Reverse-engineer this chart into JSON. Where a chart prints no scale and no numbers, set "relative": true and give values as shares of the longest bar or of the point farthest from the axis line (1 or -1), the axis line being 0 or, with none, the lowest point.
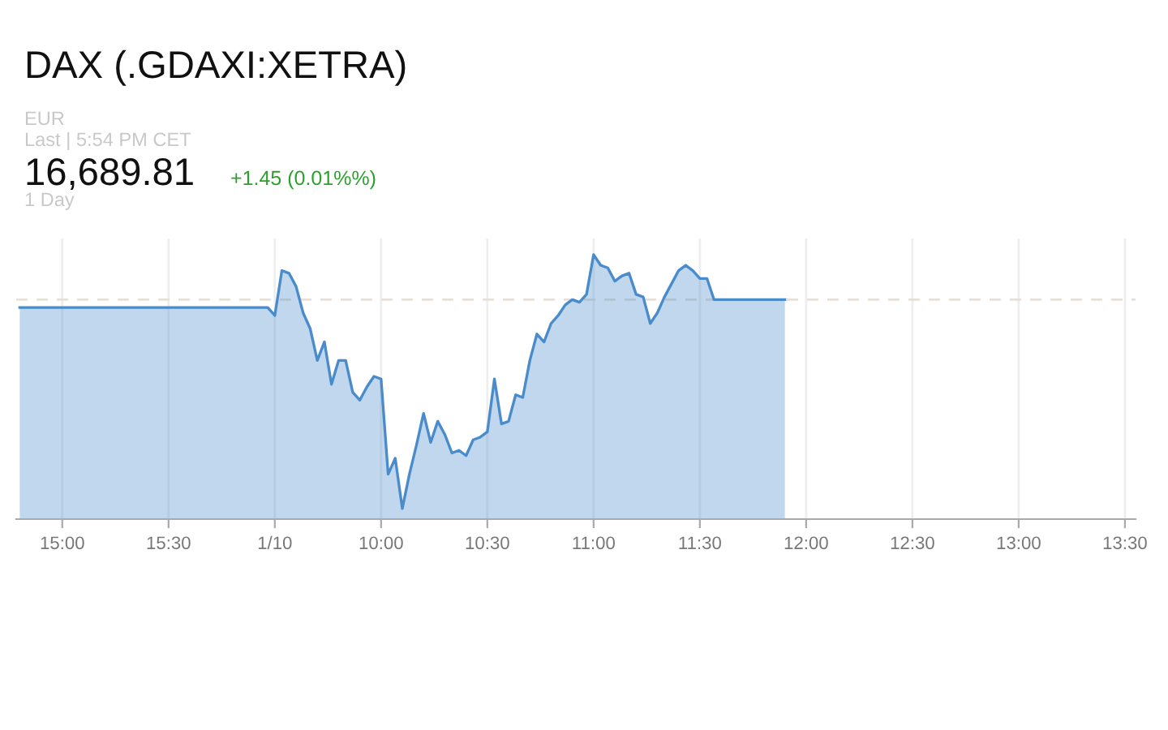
{
  "chart_data": {
    "type": "area",
    "title": "DAX (.GDAXI:XETRA)",
    "subtitle": "EUR",
    "annotations": [
      "Last | 5:54 PM CET",
      "16,689.81",
      "+1.45 (0.01%%)",
      "1 Day"
    ],
    "relative": true,
    "categories": [
      null,
      null,
      null,
      null,
      null,
      null,
      "15:00",
      null,
      null,
      null,
      null,
      null,
      null,
      null,
      null,
      null,
      null,
      null,
      null,
      null,
      null,
      "15:30",
      null,
      null,
      null,
      null,
      null,
      null,
      null,
      null,
      null,
      null,
      null,
      null,
      null,
      null,
      "1/10",
      null,
      null,
      null,
      null,
      null,
      null,
      null,
      null,
      null,
      null,
      null,
      null,
      null,
      null,
      "10:00",
      null,
      null,
      null,
      null,
      null,
      null,
      null,
      null,
      null,
      null,
      null,
      null,
      null,
      null,
      "10:30",
      null,
      null,
      null,
      null,
      null,
      null,
      null,
      null,
      null,
      null,
      null,
      null,
      null,
      null,
      "11:00",
      null,
      null,
      null,
      null,
      null,
      null,
      null,
      null,
      null,
      null,
      null,
      null,
      null,
      null,
      "11:30",
      null,
      null,
      null,
      null,
      null,
      null,
      null,
      null,
      null,
      null,
      null,
      null,
      null,
      null,
      "12:00",
      null,
      null,
      null,
      null,
      null,
      null,
      null,
      null,
      null,
      null,
      null,
      null,
      null,
      null,
      "12:30",
      null,
      null,
      null,
      null,
      null,
      null,
      null,
      null,
      null,
      null,
      null,
      null,
      null,
      null,
      "13:00",
      null,
      null,
      null,
      null,
      null,
      null,
      null,
      null,
      null,
      null,
      null,
      null,
      null,
      null,
      "13:30",
      null
    ],
    "grid": "x",
    "ref_lines": [
      {
        "axis": "y",
        "value": 0.83,
        "label": null,
        "color": "#e6e0d8",
        "line_style": "dashed"
      }
    ],
    "series": [
      {
        "color": "#4a8ccb",
        "values": [
          0.8,
          0.8,
          0.8,
          0.8,
          0.8,
          0.8,
          0.8,
          0.8,
          0.8,
          0.8,
          0.8,
          0.8,
          0.8,
          0.8,
          0.8,
          0.8,
          0.8,
          0.8,
          0.8,
          0.8,
          0.8,
          0.8,
          0.8,
          0.8,
          0.8,
          0.8,
          0.8,
          0.8,
          0.8,
          0.8,
          0.8,
          0.8,
          0.8,
          0.8,
          0.8,
          0.8,
          0.77,
          0.94,
          0.93,
          0.88,
          0.78,
          0.72,
          0.6,
          0.67,
          0.51,
          0.6,
          0.6,
          0.48,
          0.45,
          0.5,
          0.54,
          0.53,
          0.17,
          0.23,
          0.04,
          0.17,
          0.28,
          0.4,
          0.29,
          0.37,
          0.32,
          0.25,
          0.26,
          0.24,
          0.3,
          0.31,
          0.33,
          0.53,
          0.36,
          0.37,
          0.47,
          0.46,
          0.6,
          0.7,
          0.67,
          0.74,
          0.77,
          0.81,
          0.83,
          0.82,
          0.85,
          1.0,
          0.96,
          0.95,
          0.9,
          0.92,
          0.93,
          0.85,
          0.84,
          0.74,
          0.78,
          0.84,
          0.89,
          0.94,
          0.96,
          0.94,
          0.91,
          0.91,
          0.83,
          0.83,
          0.83,
          0.83,
          0.83,
          0.83,
          0.83,
          0.83,
          0.83,
          0.83,
          0.83,
          null,
          null,
          null,
          null,
          null,
          null,
          null,
          null,
          null,
          null,
          null,
          null,
          null,
          null,
          null,
          null,
          null,
          null,
          null,
          null,
          null,
          null,
          null,
          null,
          null,
          null,
          null,
          null,
          null,
          null,
          null,
          null,
          null,
          null,
          null,
          null,
          null,
          null,
          null,
          null,
          null,
          null,
          null,
          null,
          null,
          null,
          null,
          null,
          null
        ]
      }
    ]
  }
}
